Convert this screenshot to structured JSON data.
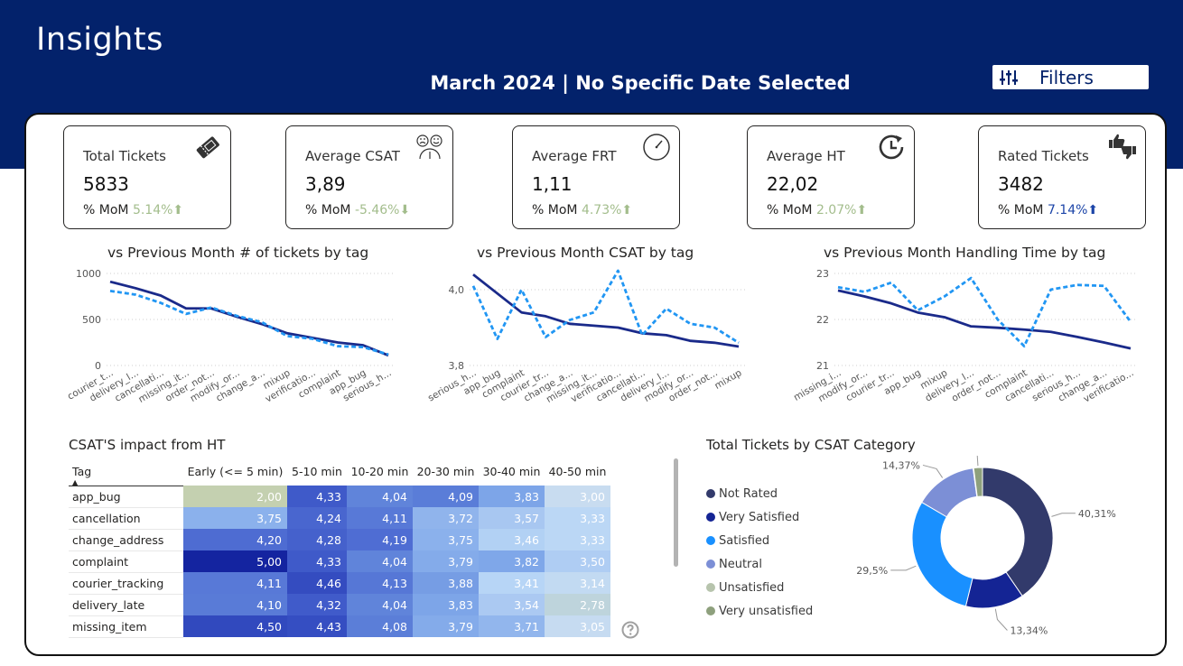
{
  "header": {
    "title": "Insights",
    "date_title": "March 2024 | No Specific Date Selected",
    "filters_label": "Filters"
  },
  "kpis": [
    {
      "title": "Total Tickets",
      "value": "5833",
      "mom_label": "% MoM",
      "mom_value": "5.14%",
      "mom_arrow": "⬆",
      "mom_color": "#a3bd8c",
      "icon": "ticket-icon"
    },
    {
      "title": "Average CSAT",
      "value": "3,89",
      "mom_label": "% MoM",
      "mom_value": "-5.46%",
      "mom_arrow": "⬇",
      "mom_color": "#a3bd8c",
      "icon": "satisfaction-gauge-icon"
    },
    {
      "title": "Average FRT",
      "value": "1,11",
      "mom_label": "% MoM",
      "mom_value": "4.73%",
      "mom_arrow": "⬆",
      "mom_color": "#a3bd8c",
      "icon": "clock-icon"
    },
    {
      "title": "Average HT",
      "value": "22,02",
      "mom_label": "% MoM",
      "mom_value": "2.07%",
      "mom_arrow": "⬆",
      "mom_color": "#a3bd8c",
      "icon": "clock-rotate-icon"
    },
    {
      "title": "Rated Tickets",
      "value": "3482",
      "mom_label": "% MoM",
      "mom_value": "7.14%",
      "mom_arrow": "⬆",
      "mom_color": "#1c45a8",
      "icon": "thumbs-up-down-icon"
    }
  ],
  "colors": {
    "header_bg": "#03226b",
    "current_line": "#1a2a8a",
    "previous_line": "#2196f3"
  },
  "chart_data": [
    {
      "type": "line",
      "title": "vs Previous Month # of tickets by tag",
      "categories": [
        "courier_t...",
        "delivery_l...",
        "cancellati...",
        "missing_it...",
        "order_not...",
        "modify_or...",
        "change_a...",
        "mixup",
        "verificatio...",
        "complaint",
        "app_bug",
        "serious_h..."
      ],
      "yticks": [
        "0",
        "500",
        "1000"
      ],
      "ylim": [
        0,
        1000
      ],
      "grid": true,
      "series": [
        {
          "style": "solid",
          "values": [
            910,
            840,
            760,
            620,
            620,
            530,
            450,
            350,
            300,
            250,
            220,
            110
          ]
        },
        {
          "style": "dashed",
          "values": [
            810,
            770,
            680,
            560,
            630,
            540,
            470,
            320,
            290,
            210,
            200,
            120
          ]
        }
      ]
    },
    {
      "type": "line",
      "title": "vs Previous Month CSAT by tag",
      "categories": [
        "serious_h...",
        "app_bug",
        "complaint",
        "courier_tr...",
        "change_a...",
        "missing_it...",
        "verificatio...",
        "cancellati...",
        "delivery_l...",
        "modify_or...",
        "order_not...",
        "mixup"
      ],
      "yticks": [
        "3,8",
        "4,0"
      ],
      "ylim": [
        3.8,
        4.05
      ],
      "grid": true,
      "series": [
        {
          "style": "solid",
          "values": [
            4.04,
            3.99,
            3.94,
            3.93,
            3.91,
            3.905,
            3.9,
            3.885,
            3.88,
            3.865,
            3.86,
            3.85
          ]
        },
        {
          "style": "dashed",
          "values": [
            4.01,
            3.87,
            4.0,
            3.875,
            3.92,
            3.94,
            4.05,
            3.88,
            3.95,
            3.91,
            3.9,
            3.86
          ]
        }
      ]
    },
    {
      "type": "line",
      "title": "vs Previous Month Handling Time by tag",
      "categories": [
        "missing_i...",
        "modify_or...",
        "courier_tr...",
        "app_bug",
        "mixup",
        "delivery_l...",
        "order_not...",
        "complaint",
        "cancellati...",
        "serious_h...",
        "change_a...",
        "verificatio..."
      ],
      "yticks": [
        "21",
        "22",
        "23"
      ],
      "ylim": [
        21,
        23
      ],
      "grid": true,
      "series": [
        {
          "style": "solid",
          "values": [
            22.63,
            22.5,
            22.35,
            22.15,
            22.05,
            21.85,
            21.82,
            21.78,
            21.73,
            21.62,
            21.5,
            21.37
          ]
        },
        {
          "style": "dashed",
          "values": [
            22.7,
            22.6,
            22.8,
            22.2,
            22.5,
            22.9,
            22.0,
            21.42,
            22.65,
            22.75,
            22.73,
            21.95
          ]
        }
      ]
    },
    {
      "type": "pie",
      "title": "Total Tickets by CSAT Category",
      "legend_placement": "left",
      "slices": [
        {
          "name": "Not Rated",
          "value": 40.31,
          "label": "40,31%",
          "color": "#323a6b"
        },
        {
          "name": "Very Satisfied",
          "value": 13.34,
          "label": "13,34%",
          "color": "#142494"
        },
        {
          "name": "Satisfied",
          "value": 29.5,
          "label": "29,5%",
          "color": "#1990ff"
        },
        {
          "name": "Neutral",
          "value": 14.37,
          "label": "14,37%",
          "color": "#7c8fd6"
        },
        {
          "name": "Unsatisfied",
          "value": 0.13,
          "label": "",
          "color": "#b7c4ad"
        },
        {
          "name": "Very unsatisfied",
          "value": 2.01,
          "label": "2,01%",
          "color": "#8ea07d"
        }
      ]
    },
    {
      "type": "heatmap",
      "title": "CSAT'S impact from HT",
      "row_header": "Tag",
      "columns": [
        "Early (<= 5 min)",
        "5-10 min",
        "10-20 min",
        "20-30 min",
        "30-40 min",
        "40-50 min"
      ],
      "rows": [
        {
          "tag": "app_bug",
          "values": [
            "2,00",
            "4,33",
            "4,04",
            "4,09",
            "3,83",
            "3,00"
          ]
        },
        {
          "tag": "cancellation",
          "values": [
            "3,75",
            "4,24",
            "4,11",
            "3,72",
            "3,57",
            "3,33"
          ]
        },
        {
          "tag": "change_address",
          "values": [
            "4,20",
            "4,28",
            "4,19",
            "3,75",
            "3,46",
            "3,33"
          ]
        },
        {
          "tag": "complaint",
          "values": [
            "5,00",
            "4,33",
            "4,04",
            "3,79",
            "3,82",
            "3,50"
          ]
        },
        {
          "tag": "courier_tracking",
          "values": [
            "4,11",
            "4,46",
            "4,13",
            "3,88",
            "3,41",
            "3,14"
          ]
        },
        {
          "tag": "delivery_late",
          "values": [
            "4,10",
            "4,32",
            "4,04",
            "3,83",
            "3,54",
            "2,78"
          ]
        },
        {
          "tag": "missing_item",
          "values": [
            "4,50",
            "4,43",
            "4,08",
            "3,79",
            "3,71",
            "3,05"
          ]
        }
      ]
    }
  ]
}
